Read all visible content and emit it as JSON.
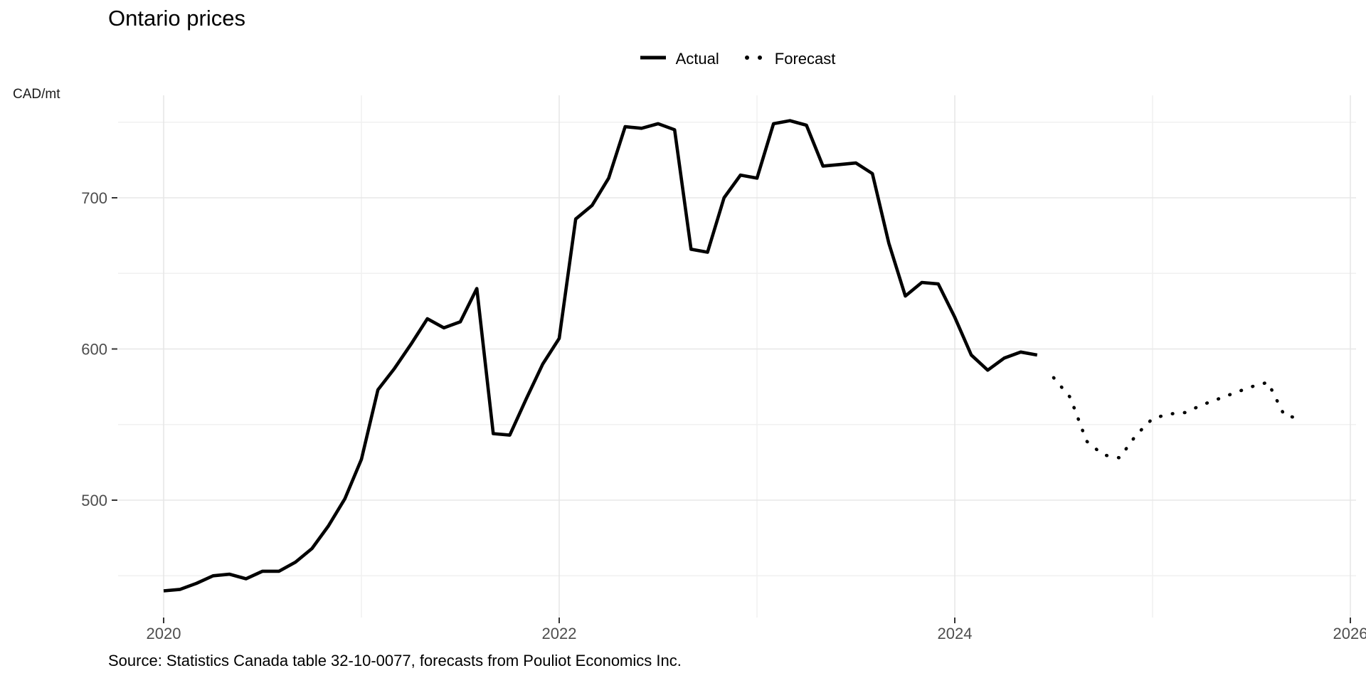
{
  "chart_data": {
    "type": "line",
    "title": "Ontario prices",
    "ylabel": "CAD/mt",
    "xlabel": "",
    "x_axis": {
      "major_tick_labels": [
        "2020",
        "2022",
        "2024",
        "2026"
      ],
      "major_tick_years": [
        2020,
        2022,
        2024,
        2026
      ],
      "minor_gridline_years": [
        2021,
        2023,
        2025
      ]
    },
    "y_axis": {
      "major_tick_labels": [
        "500",
        "600",
        "700"
      ],
      "major_tick_values": [
        500,
        600,
        700
      ],
      "minor_gridline_values": [
        450,
        550,
        650,
        750
      ]
    },
    "ylim": [
      422,
      768
    ],
    "xlim_years": [
      2019.72,
      2026.04
    ],
    "grid": "major and minor light gray gridlines on white, no panel border",
    "legend_position": "top center",
    "series": [
      {
        "name": "Actual",
        "style": "solid",
        "start": "2020-01",
        "freq": "monthly",
        "values": [
          440,
          441,
          445,
          450,
          451,
          448,
          453,
          453,
          459,
          468,
          483,
          501,
          527,
          573,
          587,
          603,
          620,
          614,
          618,
          640,
          544,
          543,
          567,
          590,
          607,
          686,
          695,
          713,
          747,
          746,
          749,
          745,
          666,
          664,
          700,
          715,
          713,
          749,
          751,
          748,
          721,
          722,
          723,
          716,
          670,
          635,
          644,
          643,
          621,
          596,
          586,
          594,
          598,
          596
        ]
      },
      {
        "name": "Forecast",
        "style": "dotted",
        "start": "2024-07",
        "freq": "monthly",
        "values": [
          581,
          568,
          539,
          530,
          528,
          543,
          554,
          557,
          558,
          563,
          567,
          571,
          575,
          578,
          556,
          554
        ]
      }
    ]
  },
  "source_note": "Source: Statistics Canada table 32-10-0077, forecasts from Pouliot Economics Inc.",
  "colors": {
    "line": "#000000",
    "grid_major": "#e7e7e7",
    "grid_minor": "#f0f0f0",
    "axis_text": "#4d4d4d",
    "tick_mark": "#333333",
    "background": "#ffffff",
    "title_text": "#000000"
  }
}
